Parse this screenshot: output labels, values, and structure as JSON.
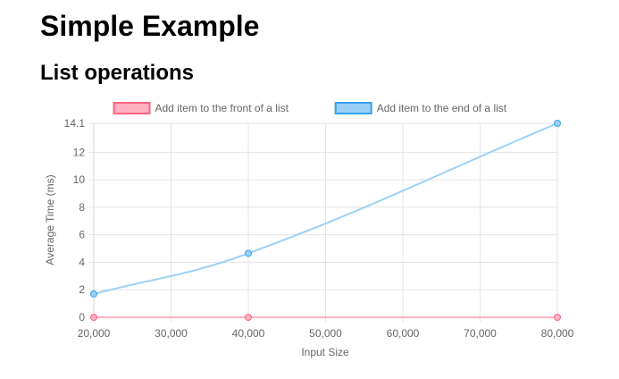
{
  "page": {
    "title": "Simple Example",
    "section_title": "List operations"
  },
  "chart_data": {
    "type": "line",
    "x": [
      20000,
      40000,
      80000
    ],
    "series": [
      {
        "name": "Add item to the front of a list",
        "values": [
          0,
          0,
          0
        ],
        "color": "#ff6384",
        "fill_color": "#ffb1c1"
      },
      {
        "name": "Add item to the end of a list",
        "values": [
          1.7,
          4.65,
          14.1
        ],
        "color": "#36a2eb",
        "fill_color": "#9ad0f5"
      }
    ],
    "xlabel": "Input Size",
    "ylabel": "Average Time (ms)",
    "xlim": [
      20000,
      80000
    ],
    "ylim": [
      0,
      14.1
    ],
    "x_ticks": [
      20000,
      30000,
      40000,
      50000,
      60000,
      70000,
      80000
    ],
    "x_tick_labels": [
      "20,000",
      "30,000",
      "40,000",
      "50,000",
      "60,000",
      "70,000",
      "80,000"
    ],
    "y_ticks": [
      0,
      2,
      4,
      6,
      8,
      10,
      12,
      14.1
    ],
    "y_tick_labels": [
      "0",
      "2",
      "4",
      "6",
      "8",
      "10",
      "12",
      "14.1"
    ],
    "grid": true,
    "legend_position": "top-center"
  }
}
